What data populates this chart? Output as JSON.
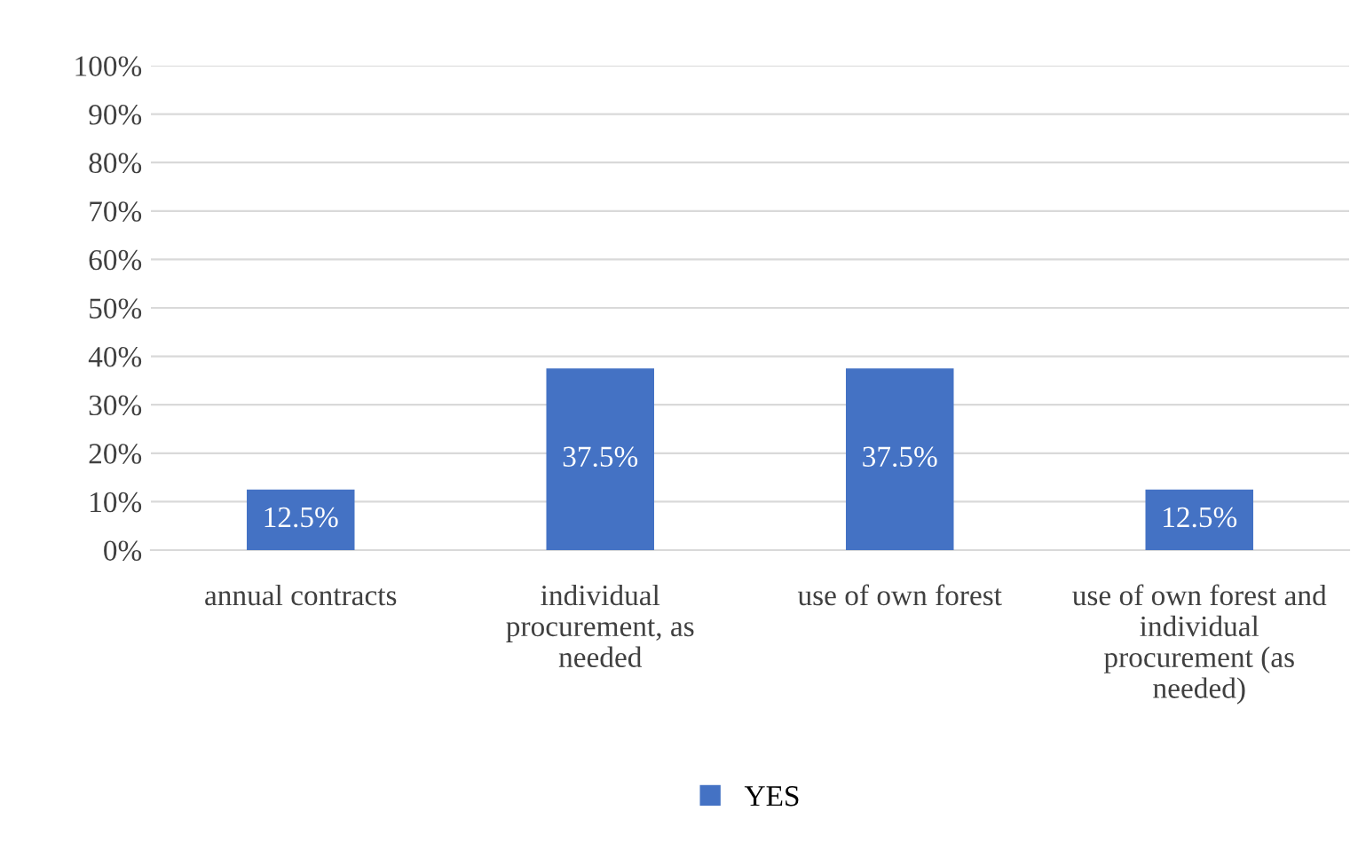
{
  "chart_data": {
    "type": "bar",
    "categories": [
      "annual contracts",
      "individual\nprocurement, as\nneeded",
      "use of own forest",
      "use of own forest and\nindividual\nprocurement (as\nneeded)"
    ],
    "series": [
      {
        "name": "YES",
        "color": "#4472c4",
        "values": [
          12.5,
          37.5,
          37.5,
          12.5
        ],
        "value_labels": [
          "12.5%",
          "37.5%",
          "37.5%",
          "12.5%"
        ]
      }
    ],
    "ylim": [
      0,
      100
    ],
    "yticks": [
      {
        "value": 0,
        "label": "0%"
      },
      {
        "value": 10,
        "label": "10%"
      },
      {
        "value": 20,
        "label": "20%"
      },
      {
        "value": 30,
        "label": "30%"
      },
      {
        "value": 40,
        "label": "40%"
      },
      {
        "value": 50,
        "label": "50%"
      },
      {
        "value": 60,
        "label": "60%"
      },
      {
        "value": 70,
        "label": "70%"
      },
      {
        "value": 80,
        "label": "80%"
      },
      {
        "value": 90,
        "label": "90%"
      },
      {
        "value": 100,
        "label": "100%"
      }
    ],
    "grid": "y",
    "legend": "bottom"
  }
}
